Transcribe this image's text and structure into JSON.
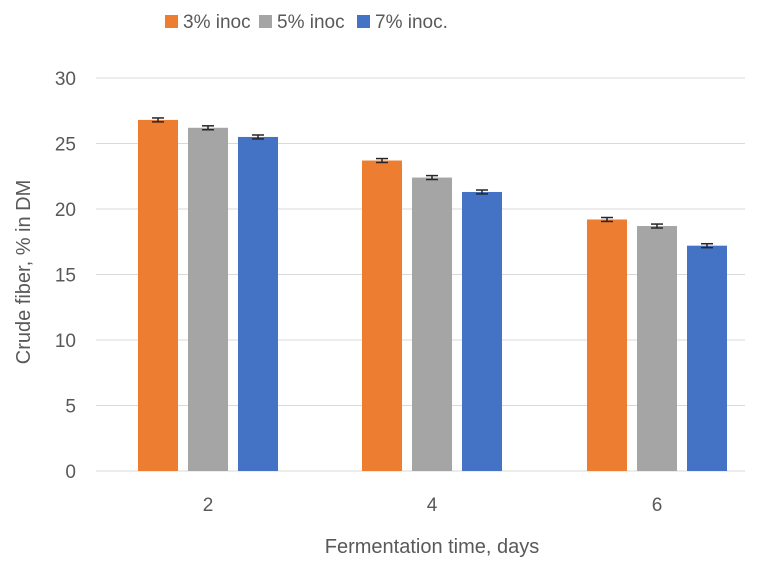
{
  "chart_data": {
    "type": "bar",
    "categories": [
      "2",
      "4",
      "6"
    ],
    "series": [
      {
        "name": "3% inoc",
        "color": "#ED7D31",
        "values": [
          26.8,
          23.7,
          19.2
        ],
        "errors": [
          0.15,
          0.15,
          0.15
        ]
      },
      {
        "name": "5% inoc",
        "color": "#A5A5A5",
        "values": [
          26.2,
          22.4,
          18.7
        ],
        "errors": [
          0.15,
          0.15,
          0.15
        ]
      },
      {
        "name": "7% inoc.",
        "color": "#4472C4",
        "values": [
          25.5,
          21.3,
          17.2
        ],
        "errors": [
          0.15,
          0.15,
          0.15
        ]
      }
    ],
    "xlabel": "Fermentation time, days",
    "ylabel": "Crude fiber, % in DM",
    "ylim": [
      0,
      30
    ],
    "yticks": [
      "0",
      "5",
      "10",
      "15",
      "20",
      "25",
      "30"
    ],
    "grid": true,
    "legend_position": "top"
  }
}
